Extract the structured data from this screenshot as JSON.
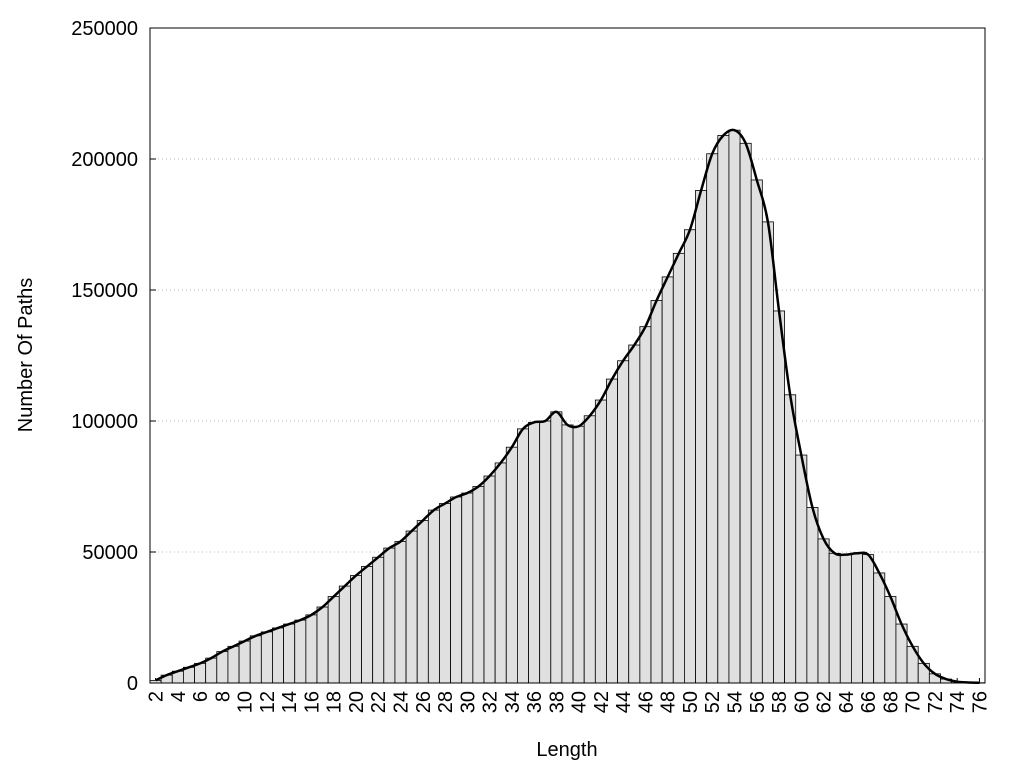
{
  "chart_data": {
    "type": "bar",
    "x_label": "Length",
    "y_label": "Number Of Paths",
    "x": [
      2,
      3,
      4,
      5,
      6,
      7,
      8,
      9,
      10,
      11,
      12,
      13,
      14,
      15,
      16,
      17,
      18,
      19,
      20,
      21,
      22,
      23,
      24,
      25,
      26,
      27,
      28,
      29,
      30,
      31,
      32,
      33,
      34,
      35,
      36,
      37,
      38,
      39,
      40,
      41,
      42,
      43,
      44,
      45,
      46,
      47,
      48,
      49,
      50,
      51,
      52,
      53,
      54,
      55,
      56,
      57,
      58,
      59,
      60,
      61,
      62,
      63,
      64,
      65,
      66,
      67,
      68,
      69,
      70,
      71,
      72,
      73,
      74,
      75,
      76
    ],
    "values": [
      1000,
      3000,
      4500,
      6000,
      7500,
      9500,
      12000,
      14000,
      16000,
      18000,
      19500,
      21000,
      22500,
      24000,
      26000,
      29000,
      33000,
      37000,
      41000,
      44500,
      48000,
      51500,
      54000,
      58000,
      62000,
      66000,
      68500,
      71000,
      72500,
      75000,
      79000,
      84000,
      90000,
      97000,
      99500,
      100000,
      103500,
      98500,
      98000,
      102000,
      108000,
      116000,
      123000,
      129000,
      136000,
      146000,
      155000,
      164000,
      173000,
      188000,
      202000,
      209000,
      211000,
      206000,
      192000,
      176000,
      142000,
      110000,
      87000,
      67000,
      55000,
      49500,
      49000,
      49500,
      49000,
      42000,
      33000,
      22500,
      14000,
      7500,
      3500,
      1500,
      500,
      200,
      100
    ],
    "color": "#e0e0e0",
    "smooth_line": true,
    "line_color": "#000000",
    "xlim": [
      1.5,
      76.5
    ],
    "xticks": [
      2,
      4,
      6,
      8,
      10,
      12,
      14,
      16,
      18,
      20,
      22,
      24,
      26,
      28,
      30,
      32,
      34,
      36,
      38,
      40,
      42,
      44,
      46,
      48,
      50,
      52,
      54,
      56,
      58,
      60,
      62,
      64,
      66,
      68,
      70,
      72,
      74,
      76
    ],
    "ylim": [
      0,
      250000
    ],
    "yticks": [
      0,
      50000,
      100000,
      150000,
      200000,
      250000
    ],
    "grid": true
  }
}
